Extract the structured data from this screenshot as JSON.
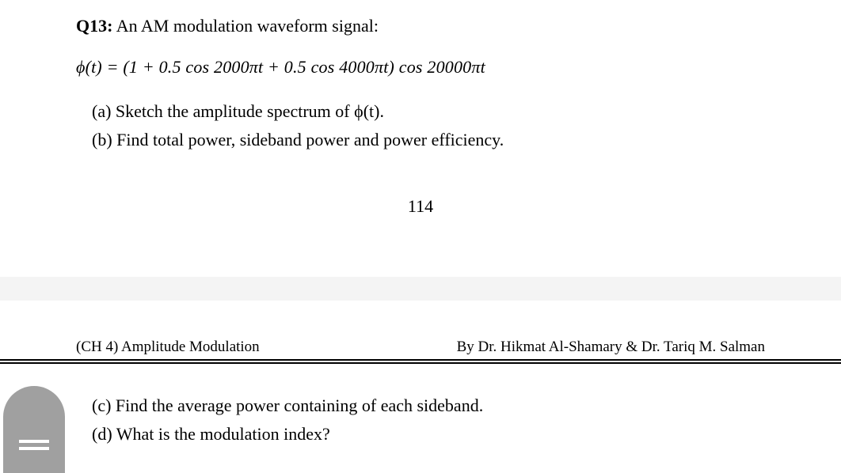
{
  "question": {
    "number": "Q13:",
    "prompt": "An AM modulation waveform signal:",
    "equation": "ϕ(t) = (1 + 0.5 cos 2000πt + 0.5 cos 4000πt) cos 20000πt",
    "parts": {
      "a": "(a)  Sketch the amplitude spectrum of  ϕ(t).",
      "b": "(b)  Find total power, sideband power and power efficiency.",
      "c": "(c) Find the average power containing of each sideband.",
      "d": "(d)  What is the modulation index?"
    }
  },
  "page_number": "114",
  "footer": {
    "left": "(CH 4) Amplitude Modulation",
    "right": "By Dr. Hikmat Al-Shamary & Dr. Tariq M. Salman"
  },
  "colors": {
    "text": "#000000",
    "background": "#ffffff",
    "gap": "#f4f4f4",
    "tab": "#a0a0a0",
    "tab_bar": "#ffffff"
  },
  "fonts": {
    "body_family": "Times New Roman",
    "body_size_pt": 16,
    "footer_size_pt": 14
  }
}
